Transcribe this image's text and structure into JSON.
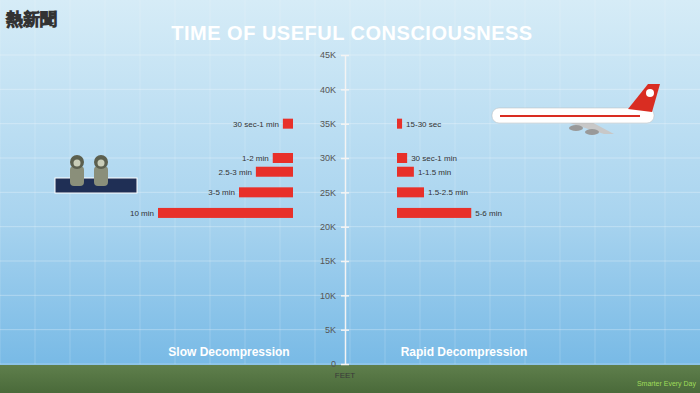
{
  "chart_data": {
    "type": "bar",
    "title": "TIME OF USEFUL CONSCIOUSNESS",
    "orientation": "horizontal",
    "data_labels": true,
    "grid": true,
    "tick_labels": "x",
    "xlabel": "FEET",
    "x": [
      22000,
      25000,
      28000,
      30000,
      35000
    ],
    "xlim": [
      0,
      45000
    ],
    "xticks": [
      0,
      {
        "value": 5000,
        "label": "5K"
      },
      {
        "value": 10000,
        "label": "10K"
      },
      {
        "value": 15000,
        "label": "15K"
      },
      {
        "value": 20000,
        "label": "20K"
      },
      {
        "value": 25000,
        "label": "25K"
      },
      {
        "value": 30000,
        "label": "30K"
      },
      {
        "value": 35000,
        "label": "35K"
      },
      {
        "value": 40000,
        "label": "40K"
      },
      {
        "value": 45000,
        "label": "45K"
      }
    ],
    "series": [
      {
        "name": "Slow Decompression",
        "color": "#e8302a",
        "values": [
          10,
          4,
          2.75,
          1.5,
          0.75
        ],
        "value_labels": [
          "10 min",
          "3-5 min",
          "2.5-3 min",
          "1-2 min",
          "30 sec-1 min"
        ]
      },
      {
        "name": "Rapid Decompression",
        "color": "#e8302a",
        "values": [
          5.5,
          2,
          1.25,
          0.75,
          0.375
        ],
        "value_labels": [
          "5-6 min",
          "1.5-2.5 min",
          "1-1.5 min",
          "30 sec-1 min",
          "15-30 sec"
        ]
      }
    ],
    "annotations": [
      "熱新聞",
      "Smarter Every Day"
    ]
  }
}
